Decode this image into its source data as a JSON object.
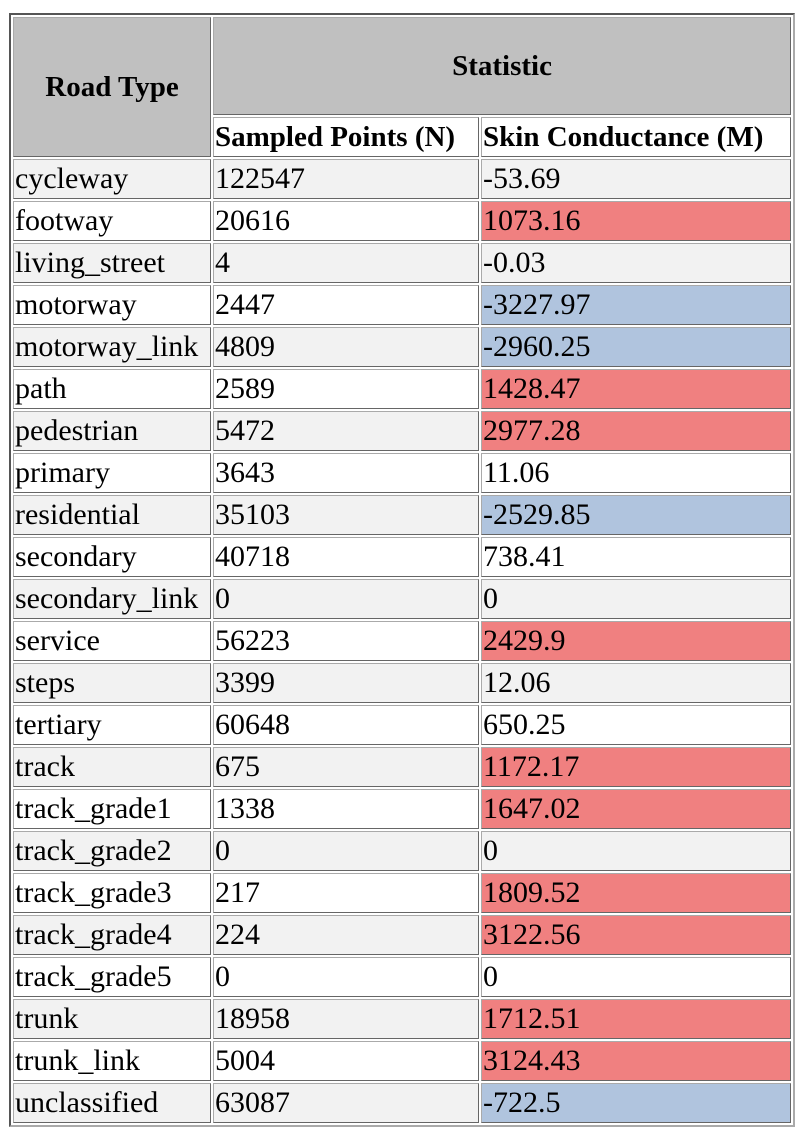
{
  "table": {
    "header": {
      "road_type": "Road Type",
      "statistic": "Statistic",
      "col_n": "Sampled Points (N)",
      "col_m": "Skin Conductance (M)"
    },
    "colors": {
      "header_bg": "#c0c0c0",
      "positive_highlight": "#f08080",
      "negative_highlight": "#b0c4de"
    },
    "rows": [
      {
        "road": "cycleway",
        "n": "122547",
        "m": "-53.69",
        "hl": ""
      },
      {
        "road": "footway",
        "n": "20616",
        "m": "1073.16",
        "hl": "pos"
      },
      {
        "road": "living_street",
        "n": "4",
        "m": "-0.03",
        "hl": ""
      },
      {
        "road": "motorway",
        "n": "2447",
        "m": "-3227.97",
        "hl": "neg"
      },
      {
        "road": "motorway_link",
        "n": "4809",
        "m": "-2960.25",
        "hl": "neg"
      },
      {
        "road": "path",
        "n": "2589",
        "m": "1428.47",
        "hl": "pos"
      },
      {
        "road": "pedestrian",
        "n": "5472",
        "m": "2977.28",
        "hl": "pos"
      },
      {
        "road": "primary",
        "n": "3643",
        "m": "11.06",
        "hl": ""
      },
      {
        "road": "residential",
        "n": "35103",
        "m": "-2529.85",
        "hl": "neg"
      },
      {
        "road": "secondary",
        "n": "40718",
        "m": "738.41",
        "hl": ""
      },
      {
        "road": "secondary_link",
        "n": "0",
        "m": "0",
        "hl": ""
      },
      {
        "road": "service",
        "n": "56223",
        "m": "2429.9",
        "hl": "pos"
      },
      {
        "road": "steps",
        "n": "3399",
        "m": "12.06",
        "hl": ""
      },
      {
        "road": "tertiary",
        "n": "60648",
        "m": "650.25",
        "hl": ""
      },
      {
        "road": "track",
        "n": "675",
        "m": "1172.17",
        "hl": "pos"
      },
      {
        "road": "track_grade1",
        "n": "1338",
        "m": "1647.02",
        "hl": "pos"
      },
      {
        "road": "track_grade2",
        "n": "0",
        "m": "0",
        "hl": ""
      },
      {
        "road": "track_grade3",
        "n": "217",
        "m": "1809.52",
        "hl": "pos"
      },
      {
        "road": "track_grade4",
        "n": "224",
        "m": "3122.56",
        "hl": "pos"
      },
      {
        "road": "track_grade5",
        "n": "0",
        "m": "0",
        "hl": ""
      },
      {
        "road": "trunk",
        "n": "18958",
        "m": "1712.51",
        "hl": "pos"
      },
      {
        "road": "trunk_link",
        "n": "5004",
        "m": "3124.43",
        "hl": "pos"
      },
      {
        "road": "unclassified",
        "n": "63087",
        "m": "-722.5",
        "hl": "neg"
      }
    ]
  }
}
